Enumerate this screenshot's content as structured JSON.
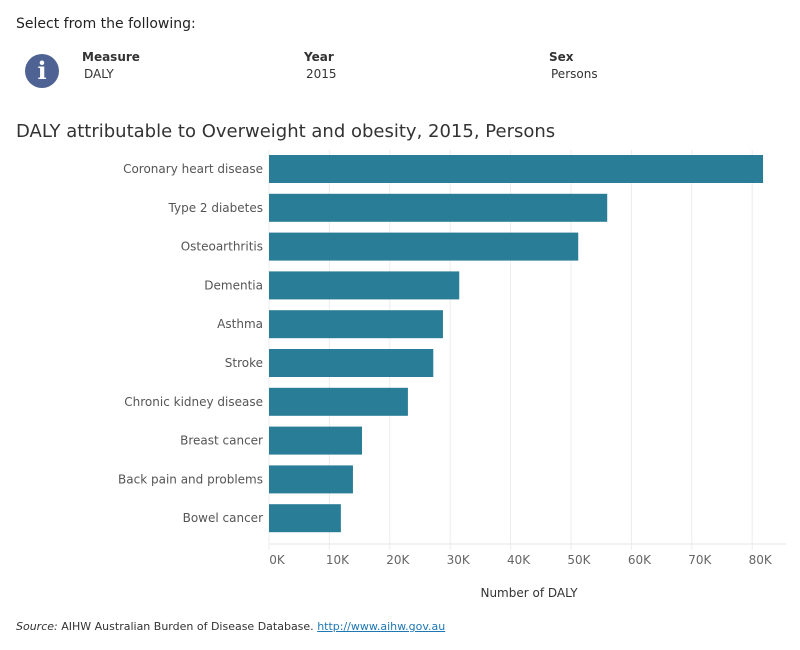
{
  "header": {
    "prompt": "Select from the following:",
    "info_icon": "info-icon",
    "filters": [
      {
        "label": "Measure",
        "value": "DALY"
      },
      {
        "label": "Year",
        "value": "2015"
      },
      {
        "label": "Sex",
        "value": "Persons"
      }
    ]
  },
  "chart_data": {
    "type": "bar",
    "orientation": "horizontal",
    "title": "DALY attributable to Overweight and obesity, 2015, Persons",
    "xlabel": "Number of DALY",
    "ylabel": "",
    "categories": [
      "Coronary heart disease",
      "Type 2 diabetes",
      "Osteoarthritis",
      "Dementia",
      "Asthma",
      "Stroke",
      "Chronic kidney disease",
      "Breast cancer",
      "Back pain and problems",
      "Bowel cancer"
    ],
    "values": [
      81800,
      56000,
      51200,
      31500,
      28800,
      27200,
      23000,
      15400,
      13900,
      11900
    ],
    "xlim": [
      0,
      85600
    ],
    "ticks": [
      0,
      10000,
      20000,
      30000,
      40000,
      50000,
      60000,
      70000,
      80000
    ],
    "tick_labels": [
      "0K",
      "10K",
      "20K",
      "30K",
      "40K",
      "50K",
      "60K",
      "70K",
      "80K"
    ],
    "grid": "vertical",
    "bar_color": "#2a7d96"
  },
  "source": {
    "label": "Source:",
    "text": "AIHW Australian Burden of Disease Database.",
    "link": "http://www.aihw.gov.au"
  }
}
